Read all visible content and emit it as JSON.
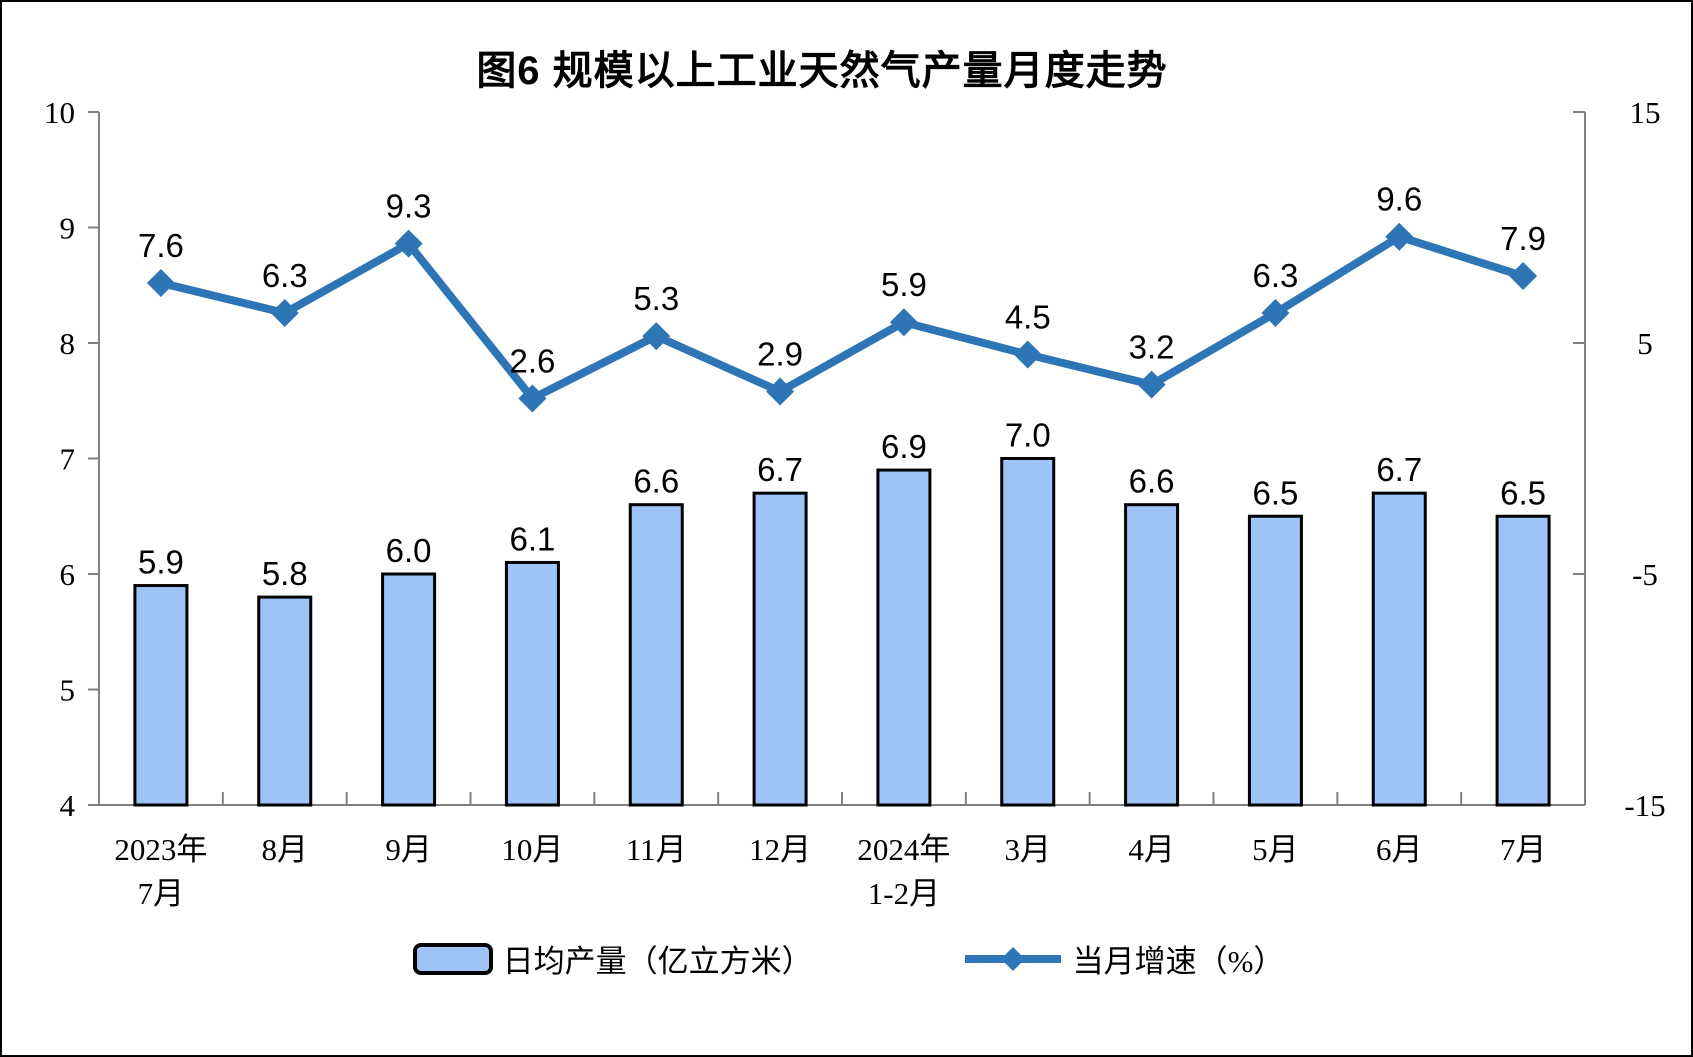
{
  "title": "图6 规模以上工业天然气产量月度走势",
  "legend": {
    "bar_label": "日均产量（亿立方米）",
    "line_label": "当月增速（%）"
  },
  "colors": {
    "bar_fill": "#9DC3F7",
    "bar_border": "#000000",
    "line": "#2E75B6",
    "axis": "#808080",
    "text": "#000000",
    "background": "#FFFFFF",
    "page_border": "#000000"
  },
  "chart_data": {
    "type": "combo-bar-line",
    "title": "图6 规模以上工业天然气产量月度走势",
    "categories": [
      [
        "2023年",
        "7月"
      ],
      [
        "8月"
      ],
      [
        "9月"
      ],
      [
        "10月"
      ],
      [
        "11月"
      ],
      [
        "12月"
      ],
      [
        "2024年",
        "1-2月"
      ],
      [
        "3月"
      ],
      [
        "4月"
      ],
      [
        "5月"
      ],
      [
        "6月"
      ],
      [
        "7月"
      ]
    ],
    "series": [
      {
        "name": "日均产量（亿立方米）",
        "type": "bar",
        "axis": "left",
        "values": [
          5.9,
          5.8,
          6.0,
          6.1,
          6.6,
          6.7,
          6.9,
          7.0,
          6.6,
          6.5,
          6.7,
          6.5
        ]
      },
      {
        "name": "当月增速（%）",
        "type": "line",
        "axis": "right",
        "values": [
          7.6,
          6.3,
          9.3,
          2.6,
          5.3,
          2.9,
          5.9,
          4.5,
          3.2,
          6.3,
          9.6,
          7.9
        ]
      }
    ],
    "left_axis": {
      "min": 4,
      "max": 10,
      "ticks": [
        4,
        5,
        6,
        7,
        8,
        9,
        10
      ]
    },
    "right_axis": {
      "min": -15,
      "max": 15,
      "ticks": [
        -15,
        -5,
        5,
        15
      ]
    },
    "grid": false,
    "legend_position": "bottom",
    "value_label_decimals": 1
  }
}
